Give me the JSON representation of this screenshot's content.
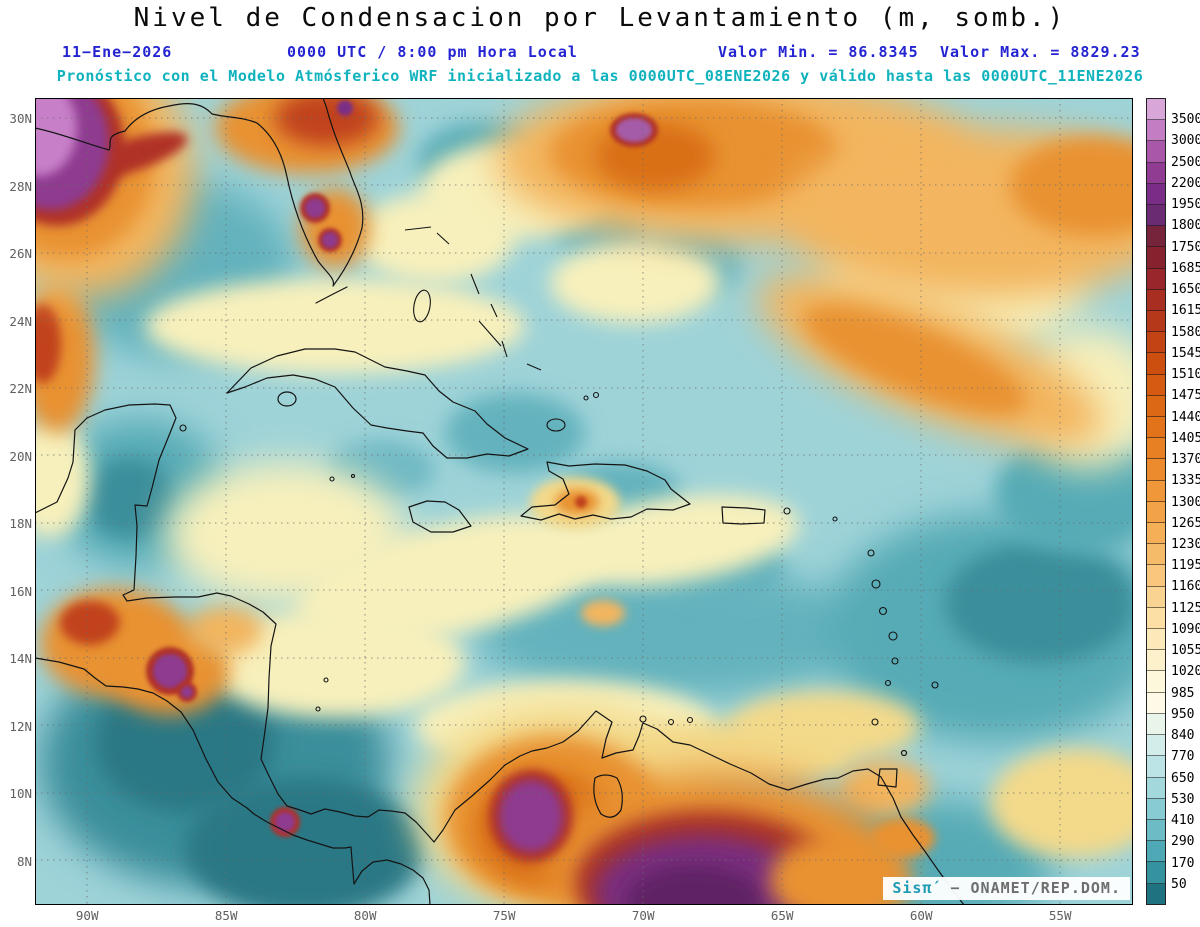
{
  "title": "Nivel de Condensacion por Levantamiento (m, somb.)",
  "header": {
    "date": "11−Ene−2026",
    "time_label": "0000 UTC / 8:00 pm Hora Local",
    "min_label": "Valor Min. = 86.8345",
    "max_label": "Valor Max. = 8829.23",
    "forecast_line": "Pronóstico con el Modelo Atmósferico WRF inicializado a las 0000UTC_08ENE2026 y válido hasta las 0000UTC_11ENE2026"
  },
  "axes": {
    "lat_labels": [
      "30N",
      "28N",
      "26N",
      "24N",
      "22N",
      "20N",
      "18N",
      "16N",
      "14N",
      "12N",
      "10N",
      "8N"
    ],
    "lon_labels": [
      "90W",
      "85W",
      "80W",
      "75W",
      "70W",
      "65W",
      "60W",
      "55W"
    ]
  },
  "colorbar": {
    "tick_labels": [
      "3500",
      "3000",
      "2500",
      "2200",
      "1950",
      "1800",
      "1750",
      "1685",
      "1650",
      "1615",
      "1580",
      "1545",
      "1510",
      "1475",
      "1440",
      "1405",
      "1370",
      "1335",
      "1300",
      "1265",
      "1230",
      "1195",
      "1160",
      "1125",
      "1090",
      "1055",
      "1020",
      "985",
      "950",
      "840",
      "770",
      "650",
      "530",
      "410",
      "290",
      "170",
      "50"
    ],
    "colors_top_to_bottom": [
      "#D9A6D9",
      "#C37EC3",
      "#A958A9",
      "#8F3C92",
      "#7A2D86",
      "#6B2B72",
      "#76243C",
      "#86222E",
      "#98262A",
      "#A92E22",
      "#B6381A",
      "#C24314",
      "#CC4F10",
      "#D45B11",
      "#DC6715",
      "#E2731B",
      "#E77F23",
      "#EB8B2D",
      "#EF9739",
      "#F2A347",
      "#F4AF57",
      "#F6BB69",
      "#F8C77D",
      "#F9D391",
      "#FBDFA5",
      "#FCE9B9",
      "#FDF1CB",
      "#FDF7DB",
      "#FEFAE7",
      "#E9F5EB",
      "#D3EDEA",
      "#BCE4E6",
      "#A3D8DC",
      "#88CBD2",
      "#6CBCC6",
      "#4EA8B6",
      "#35929F",
      "#1F7280"
    ]
  },
  "watermark": {
    "brand": "Sisπ́",
    "credit": "− ONAMET/REP.DOM."
  },
  "chart_data": {
    "type": "heatmap",
    "title": "Nivel de Condensacion por Levantamiento (m, somb.)",
    "variable": "Nivel de Condensacion por Levantamiento (Lifting Condensation Level)",
    "units": "m",
    "valid_date": "11−Ene−2026 0000 UTC / 8:00 pm Hora Local",
    "model_run": "Modelo Atmósferico WRF inicializado a las 0000UTC_08ENE2026, válido hasta las 0000UTC_11ENE2026",
    "value_min": 86.8345,
    "value_max": 8829.23,
    "lat_range": [
      "8N",
      "30N"
    ],
    "lon_range": [
      "90W",
      "55W"
    ],
    "lat_ticks": [
      "30N",
      "28N",
      "26N",
      "24N",
      "22N",
      "20N",
      "18N",
      "16N",
      "14N",
      "12N",
      "10N",
      "8N"
    ],
    "lon_ticks": [
      "90W",
      "85W",
      "80W",
      "75W",
      "70W",
      "65W",
      "60W",
      "55W"
    ],
    "contour_levels": [
      50,
      170,
      290,
      410,
      530,
      650,
      770,
      840,
      950,
      985,
      1020,
      1055,
      1090,
      1125,
      1160,
      1195,
      1230,
      1265,
      1300,
      1335,
      1370,
      1405,
      1440,
      1475,
      1510,
      1545,
      1580,
      1615,
      1650,
      1685,
      1750,
      1800,
      1950,
      2200,
      2500,
      3000,
      3500
    ],
    "palette_low_to_high": [
      "#1F7280",
      "#35929F",
      "#4EA8B6",
      "#6CBCC6",
      "#88CBD2",
      "#A3D8DC",
      "#BCE4E6",
      "#D3EDEA",
      "#E9F5EB",
      "#FEFAE7",
      "#FDF7DB",
      "#FDF1CB",
      "#FCE9B9",
      "#FBDFA5",
      "#F9D391",
      "#F8C77D",
      "#F6BB69",
      "#F4AF57",
      "#F2A347",
      "#EF9739",
      "#EB8B2D",
      "#E77F23",
      "#E2731B",
      "#DC6715",
      "#D45B11",
      "#CC4F10",
      "#C24314",
      "#B6381A",
      "#A92E22",
      "#98262A",
      "#86222E",
      "#76243C",
      "#6B2B72",
      "#7A2D86",
      "#8F3C92",
      "#A958A9",
      "#C37EC3",
      "#D9A6D9"
    ],
    "legend_position": "right",
    "grid": true,
    "region": "Gulf of Mexico and Caribbean Sea"
  }
}
